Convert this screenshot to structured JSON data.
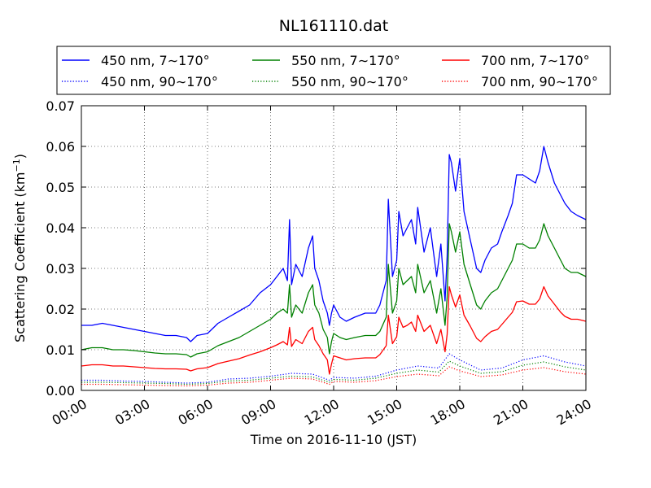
{
  "chart_data": {
    "type": "line",
    "title": "NL161110.dat",
    "xlabel": "Time on 2016-11-10 (JST)",
    "ylabel": "Scattering Coefficient (km",
    "ylabel_sup": "−1",
    "ylabel_tail": ")",
    "xlim": [
      0,
      24
    ],
    "ylim": [
      0,
      0.07
    ],
    "x_ticks": [
      0,
      3,
      6,
      9,
      12,
      15,
      18,
      21,
      24
    ],
    "x_tick_labels": [
      "00:00",
      "03:00",
      "06:00",
      "09:00",
      "12:00",
      "15:00",
      "18:00",
      "21:00",
      "24:00"
    ],
    "y_ticks": [
      0,
      0.01,
      0.02,
      0.03,
      0.04,
      0.05,
      0.06,
      0.07
    ],
    "y_tick_labels": [
      "0.00",
      "0.01",
      "0.02",
      "0.03",
      "0.04",
      "0.05",
      "0.06",
      "0.07"
    ],
    "grid": true,
    "legend_position": "top",
    "series": [
      {
        "name": "450 nm, 7∼170°",
        "color": "#0000ff",
        "style": "solid",
        "x": [
          0,
          0.5,
          1,
          1.5,
          2,
          2.5,
          3,
          3.5,
          4,
          4.5,
          5,
          5.2,
          5.5,
          6,
          6.5,
          7,
          7.5,
          8,
          8.5,
          9,
          9.3,
          9.6,
          9.8,
          9.9,
          10,
          10.2,
          10.5,
          10.8,
          11,
          11.1,
          11.3,
          11.5,
          11.7,
          11.8,
          11.9,
          12,
          12.3,
          12.6,
          13,
          13.5,
          14,
          14.2,
          14.5,
          14.6,
          14.8,
          15,
          15.1,
          15.3,
          15.5,
          15.7,
          15.9,
          16,
          16.3,
          16.6,
          16.9,
          17.1,
          17.3,
          17.4,
          17.5,
          17.6,
          17.8,
          18,
          18.2,
          18.5,
          18.8,
          19,
          19.2,
          19.5,
          19.8,
          20,
          20.3,
          20.5,
          20.7,
          21,
          21.3,
          21.6,
          21.8,
          22,
          22.2,
          22.5,
          22.8,
          23,
          23.3,
          23.6,
          24
        ],
        "y": [
          0.016,
          0.016,
          0.0165,
          0.016,
          0.0155,
          0.015,
          0.0145,
          0.014,
          0.0135,
          0.0135,
          0.013,
          0.012,
          0.0135,
          0.014,
          0.0165,
          0.018,
          0.0195,
          0.021,
          0.024,
          0.026,
          0.028,
          0.03,
          0.027,
          0.042,
          0.026,
          0.031,
          0.028,
          0.035,
          0.038,
          0.03,
          0.027,
          0.022,
          0.019,
          0.016,
          0.019,
          0.021,
          0.018,
          0.017,
          0.018,
          0.019,
          0.019,
          0.021,
          0.027,
          0.047,
          0.028,
          0.032,
          0.044,
          0.038,
          0.04,
          0.042,
          0.036,
          0.045,
          0.034,
          0.04,
          0.028,
          0.036,
          0.022,
          0.033,
          0.058,
          0.056,
          0.049,
          0.057,
          0.044,
          0.037,
          0.03,
          0.029,
          0.032,
          0.035,
          0.036,
          0.039,
          0.043,
          0.046,
          0.053,
          0.053,
          0.052,
          0.051,
          0.054,
          0.06,
          0.056,
          0.051,
          0.048,
          0.046,
          0.044,
          0.043,
          0.042
        ]
      },
      {
        "name": "550 nm, 7∼170°",
        "color": "#008000",
        "style": "solid",
        "x": [
          0,
          0.5,
          1,
          1.5,
          2,
          2.5,
          3,
          3.5,
          4,
          4.5,
          5,
          5.2,
          5.5,
          6,
          6.5,
          7,
          7.5,
          8,
          8.5,
          9,
          9.3,
          9.6,
          9.8,
          9.9,
          10,
          10.2,
          10.5,
          10.8,
          11,
          11.1,
          11.3,
          11.5,
          11.7,
          11.8,
          11.9,
          12,
          12.3,
          12.6,
          13,
          13.5,
          14,
          14.2,
          14.5,
          14.6,
          14.8,
          15,
          15.1,
          15.3,
          15.5,
          15.7,
          15.9,
          16,
          16.3,
          16.6,
          16.9,
          17.1,
          17.3,
          17.4,
          17.5,
          17.6,
          17.8,
          18,
          18.2,
          18.5,
          18.8,
          19,
          19.2,
          19.5,
          19.8,
          20,
          20.3,
          20.5,
          20.7,
          21,
          21.3,
          21.6,
          21.8,
          22,
          22.2,
          22.5,
          22.8,
          23,
          23.3,
          23.6,
          24
        ],
        "y": [
          0.01,
          0.0105,
          0.0105,
          0.01,
          0.01,
          0.0098,
          0.0095,
          0.0092,
          0.009,
          0.009,
          0.0088,
          0.0082,
          0.009,
          0.0095,
          0.011,
          0.012,
          0.013,
          0.0145,
          0.016,
          0.0175,
          0.019,
          0.02,
          0.019,
          0.026,
          0.018,
          0.021,
          0.019,
          0.024,
          0.026,
          0.021,
          0.019,
          0.015,
          0.013,
          0.009,
          0.012,
          0.014,
          0.013,
          0.0125,
          0.013,
          0.0135,
          0.0135,
          0.0145,
          0.018,
          0.031,
          0.019,
          0.022,
          0.03,
          0.026,
          0.027,
          0.028,
          0.024,
          0.031,
          0.024,
          0.027,
          0.019,
          0.025,
          0.016,
          0.023,
          0.041,
          0.039,
          0.034,
          0.039,
          0.031,
          0.026,
          0.021,
          0.02,
          0.022,
          0.024,
          0.025,
          0.027,
          0.03,
          0.032,
          0.036,
          0.036,
          0.035,
          0.035,
          0.037,
          0.041,
          0.038,
          0.035,
          0.032,
          0.03,
          0.029,
          0.029,
          0.028
        ]
      },
      {
        "name": "700 nm, 7∼170°",
        "color": "#ff0000",
        "style": "solid",
        "x": [
          0,
          0.5,
          1,
          1.5,
          2,
          2.5,
          3,
          3.5,
          4,
          4.5,
          5,
          5.2,
          5.5,
          6,
          6.5,
          7,
          7.5,
          8,
          8.5,
          9,
          9.3,
          9.6,
          9.8,
          9.9,
          10,
          10.2,
          10.5,
          10.8,
          11,
          11.1,
          11.3,
          11.5,
          11.7,
          11.8,
          11.9,
          12,
          12.3,
          12.6,
          13,
          13.5,
          14,
          14.2,
          14.5,
          14.6,
          14.8,
          15,
          15.1,
          15.3,
          15.5,
          15.7,
          15.9,
          16,
          16.3,
          16.6,
          16.9,
          17.1,
          17.3,
          17.4,
          17.5,
          17.6,
          17.8,
          18,
          18.2,
          18.5,
          18.8,
          19,
          19.2,
          19.5,
          19.8,
          20,
          20.3,
          20.5,
          20.7,
          21,
          21.3,
          21.6,
          21.8,
          22,
          22.2,
          22.5,
          22.8,
          23,
          23.3,
          23.6,
          24
        ],
        "y": [
          0.006,
          0.0063,
          0.0063,
          0.006,
          0.006,
          0.0058,
          0.0056,
          0.0054,
          0.0053,
          0.0053,
          0.0052,
          0.0048,
          0.0053,
          0.0056,
          0.0066,
          0.0072,
          0.0078,
          0.0087,
          0.0095,
          0.0105,
          0.0112,
          0.012,
          0.0112,
          0.0155,
          0.0108,
          0.0125,
          0.0115,
          0.0145,
          0.0155,
          0.0125,
          0.011,
          0.009,
          0.0075,
          0.004,
          0.0065,
          0.0085,
          0.008,
          0.0075,
          0.0078,
          0.008,
          0.008,
          0.0088,
          0.011,
          0.0185,
          0.0115,
          0.0132,
          0.018,
          0.0155,
          0.016,
          0.0168,
          0.0145,
          0.0185,
          0.0145,
          0.016,
          0.0115,
          0.015,
          0.0095,
          0.0138,
          0.0255,
          0.0235,
          0.0205,
          0.0235,
          0.0185,
          0.0158,
          0.0128,
          0.012,
          0.0132,
          0.0145,
          0.015,
          0.0162,
          0.018,
          0.0192,
          0.0218,
          0.022,
          0.0212,
          0.0212,
          0.0225,
          0.0255,
          0.0232,
          0.0212,
          0.0192,
          0.0182,
          0.0175,
          0.0175,
          0.017
        ]
      },
      {
        "name": "450 nm, 90∼170°",
        "color": "#0000ff",
        "style": "dotted",
        "x": [
          0,
          1,
          2,
          3,
          4,
          5,
          6,
          7,
          8,
          9,
          10,
          11,
          11.8,
          12,
          13,
          14,
          15,
          16,
          17,
          17.5,
          18,
          19,
          20,
          21,
          22,
          23,
          24
        ],
        "y": [
          0.0025,
          0.0025,
          0.0023,
          0.0022,
          0.002,
          0.0018,
          0.002,
          0.0028,
          0.003,
          0.0035,
          0.0042,
          0.004,
          0.0025,
          0.0032,
          0.003,
          0.0035,
          0.005,
          0.006,
          0.0055,
          0.009,
          0.0075,
          0.005,
          0.0055,
          0.0075,
          0.0085,
          0.007,
          0.006
        ]
      },
      {
        "name": "550 nm, 90∼170°",
        "color": "#008000",
        "style": "dotted",
        "x": [
          0,
          1,
          2,
          3,
          4,
          5,
          6,
          7,
          8,
          9,
          10,
          11,
          11.8,
          12,
          13,
          14,
          15,
          16,
          17,
          17.5,
          18,
          19,
          20,
          21,
          22,
          23,
          24
        ],
        "y": [
          0.002,
          0.002,
          0.0019,
          0.0018,
          0.0017,
          0.0015,
          0.0017,
          0.0023,
          0.0025,
          0.003,
          0.0035,
          0.0033,
          0.002,
          0.0027,
          0.0025,
          0.003,
          0.0042,
          0.005,
          0.0045,
          0.0072,
          0.006,
          0.0042,
          0.0046,
          0.0062,
          0.007,
          0.0058,
          0.005
        ]
      },
      {
        "name": "700 nm, 90∼170°",
        "color": "#ff0000",
        "style": "dotted",
        "x": [
          0,
          1,
          2,
          3,
          4,
          5,
          6,
          7,
          8,
          9,
          10,
          11,
          11.8,
          12,
          13,
          14,
          15,
          16,
          17,
          17.5,
          18,
          19,
          20,
          21,
          22,
          23,
          24
        ],
        "y": [
          0.0015,
          0.0015,
          0.0014,
          0.0013,
          0.0012,
          0.0011,
          0.0013,
          0.0018,
          0.002,
          0.0025,
          0.003,
          0.0028,
          0.0015,
          0.0022,
          0.002,
          0.0024,
          0.0034,
          0.004,
          0.0036,
          0.0058,
          0.0048,
          0.0034,
          0.0038,
          0.005,
          0.0056,
          0.0046,
          0.004
        ]
      }
    ]
  }
}
